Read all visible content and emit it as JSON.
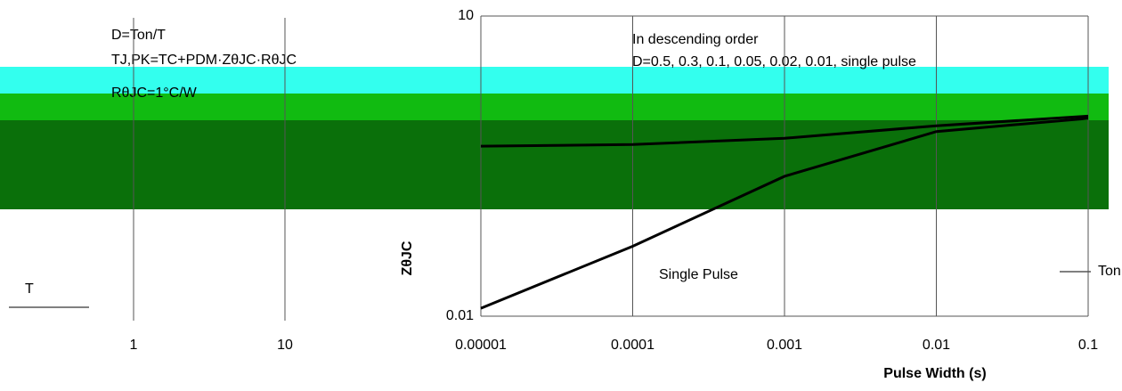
{
  "chart_data": [
    {
      "type": "line",
      "log_x": true,
      "xlim": [
        0.1,
        10
      ],
      "xticks": [
        1,
        10
      ],
      "grid": true,
      "series": []
    },
    {
      "type": "line",
      "log_x": true,
      "log_y": true,
      "x_label": "Pulse Width (s)",
      "y_label": "ZθJC",
      "xlim": [
        1e-05,
        0.1
      ],
      "ylim": [
        0.01,
        10
      ],
      "xticks": [
        {
          "value": 1e-05,
          "label": "0.00001"
        },
        {
          "value": 0.0001,
          "label": "0.0001"
        },
        {
          "value": 0.001,
          "label": "0.001"
        },
        0.01,
        0.1
      ],
      "yticks": [
        0.01,
        10
      ],
      "grid": true,
      "annotations": [
        "D=Ton/T",
        "TJ,PK=TC+PDM·ZθJC·RθJC",
        "RθJC=1°C/W",
        "In descending order",
        "D=0.5, 0.3, 0.1, 0.05, 0.02, 0.01, single pulse",
        "Single Pulse",
        "Ton",
        "T"
      ],
      "x": [
        1e-05,
        0.0001,
        0.001,
        0.01,
        0.1
      ],
      "series": [
        {
          "name": "Single Pulse",
          "color": "#000000",
          "values": [
            0.012,
            0.05,
            0.25,
            0.7,
            0.95
          ]
        },
        {
          "name": "D=0.5",
          "color": "#000000",
          "values": [
            0.5,
            0.52,
            0.6,
            0.8,
            1
          ]
        }
      ]
    }
  ]
}
